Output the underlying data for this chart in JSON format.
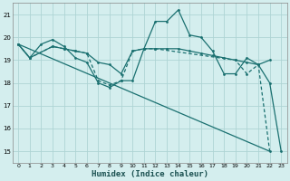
{
  "background_color": "#d4eeee",
  "grid_color": "#aed4d4",
  "line_color": "#1a7070",
  "xlabel": "Humidex (Indice chaleur)",
  "xlim": [
    -0.5,
    23.5
  ],
  "ylim": [
    14.5,
    21.5
  ],
  "yticks": [
    15,
    16,
    17,
    18,
    19,
    20,
    21
  ],
  "xticks": [
    0,
    1,
    2,
    3,
    4,
    5,
    6,
    7,
    8,
    9,
    10,
    11,
    12,
    13,
    14,
    15,
    16,
    17,
    18,
    19,
    20,
    21,
    22,
    23
  ],
  "series": [
    {
      "x": [
        0,
        1,
        2,
        3,
        4,
        5,
        6,
        7,
        8,
        9,
        10,
        11,
        12,
        13,
        14,
        15,
        16,
        17,
        18,
        19,
        20,
        21,
        22,
        23
      ],
      "y": [
        19.7,
        19.1,
        19.7,
        19.9,
        19.6,
        19.1,
        18.9,
        18.0,
        17.8,
        18.1,
        18.1,
        19.5,
        20.7,
        20.7,
        21.2,
        20.1,
        20.0,
        19.4,
        18.4,
        18.4,
        19.1,
        18.8,
        18.0,
        15.0
      ],
      "linestyle": "-",
      "marker": true
    },
    {
      "x": [
        0,
        22
      ],
      "y": [
        19.7,
        15.0
      ],
      "linestyle": "-",
      "marker": false
    },
    {
      "x": [
        0,
        1,
        3,
        4,
        5,
        6,
        7,
        8,
        9,
        10,
        11,
        12,
        13,
        14,
        15,
        16,
        17,
        18,
        19,
        20,
        21,
        22
      ],
      "y": [
        19.7,
        19.1,
        19.6,
        19.5,
        19.4,
        19.3,
        18.9,
        18.8,
        18.4,
        19.4,
        19.5,
        19.5,
        19.5,
        19.5,
        19.4,
        19.3,
        19.2,
        19.1,
        19.0,
        18.9,
        18.8,
        19.0
      ],
      "linestyle": "-",
      "marker": true
    },
    {
      "x": [
        0,
        1,
        3,
        4,
        5,
        6,
        7,
        8,
        9,
        10,
        11,
        12,
        19,
        20,
        21,
        22
      ],
      "y": [
        19.7,
        19.1,
        19.6,
        19.5,
        19.4,
        19.3,
        18.1,
        17.9,
        18.1,
        19.4,
        19.5,
        19.5,
        19.0,
        18.4,
        18.8,
        15.0
      ],
      "linestyle": "--",
      "marker": true
    }
  ]
}
